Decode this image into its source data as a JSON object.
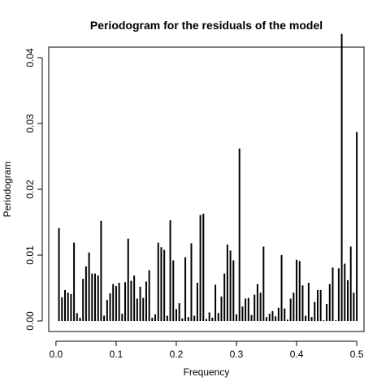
{
  "chart_data": {
    "type": "bar",
    "title": "Periodogram for the residuals of the model",
    "xlabel": "Frequency",
    "ylabel": "Periodogram",
    "xlim": [
      -0.012,
      0.512
    ],
    "ylim": [
      -0.0016,
      0.0416
    ],
    "xticks": [
      0.0,
      0.1,
      0.2,
      0.3,
      0.4,
      0.5
    ],
    "xtick_labels": [
      "0.0",
      "0.1",
      "0.2",
      "0.3",
      "0.4",
      "0.5"
    ],
    "yticks": [
      0.0,
      0.01,
      0.02,
      0.03,
      0.04
    ],
    "ytick_labels": [
      "0.00",
      "0.01",
      "0.02",
      "0.03",
      "0.04"
    ],
    "grid": false,
    "bar_color": "#000000",
    "x": [
      0.005,
      0.01,
      0.015,
      0.02,
      0.025,
      0.03,
      0.035,
      0.04,
      0.045,
      0.05,
      0.055,
      0.06,
      0.065,
      0.07,
      0.075,
      0.08,
      0.085,
      0.09,
      0.095,
      0.1,
      0.105,
      0.11,
      0.115,
      0.12,
      0.125,
      0.13,
      0.135,
      0.14,
      0.145,
      0.15,
      0.155,
      0.16,
      0.165,
      0.17,
      0.175,
      0.18,
      0.185,
      0.19,
      0.195,
      0.2,
      0.205,
      0.21,
      0.215,
      0.22,
      0.225,
      0.23,
      0.235,
      0.24,
      0.245,
      0.25,
      0.255,
      0.26,
      0.265,
      0.27,
      0.275,
      0.28,
      0.285,
      0.29,
      0.295,
      0.3,
      0.305,
      0.31,
      0.315,
      0.32,
      0.325,
      0.33,
      0.335,
      0.34,
      0.345,
      0.35,
      0.355,
      0.36,
      0.365,
      0.37,
      0.375,
      0.38,
      0.385,
      0.39,
      0.395,
      0.4,
      0.405,
      0.41,
      0.415,
      0.42,
      0.425,
      0.43,
      0.435,
      0.44,
      0.445,
      0.45,
      0.455,
      0.46,
      0.465,
      0.47,
      0.475,
      0.48,
      0.485,
      0.49,
      0.495,
      0.5
    ],
    "values": [
      0.0141,
      0.0036,
      0.0047,
      0.0043,
      0.0041,
      0.0119,
      0.0012,
      0.0005,
      0.0064,
      0.0083,
      0.0104,
      0.0072,
      0.0072,
      0.0069,
      0.0152,
      0.0008,
      0.0032,
      0.0042,
      0.0056,
      0.0053,
      0.0058,
      0.0011,
      0.0059,
      0.0125,
      0.0061,
      0.0069,
      0.0034,
      0.0052,
      0.0035,
      0.006,
      0.0077,
      0.0005,
      0.001,
      0.0119,
      0.0112,
      0.0108,
      0.0008,
      0.0153,
      0.0092,
      0.0018,
      0.0027,
      0.0004,
      0.0097,
      0.0006,
      0.0118,
      0.0008,
      0.0058,
      0.0161,
      0.0163,
      0.0003,
      0.0013,
      0.0005,
      0.0055,
      0.0012,
      0.0037,
      0.0072,
      0.0116,
      0.0107,
      0.0092,
      0.001,
      0.0262,
      0.0022,
      0.0034,
      0.0035,
      0.0009,
      0.004,
      0.0056,
      0.0043,
      0.0113,
      0.0006,
      0.0011,
      0.0015,
      0.0007,
      0.002,
      0.01,
      0.0019,
      0.0002,
      0.0034,
      0.0043,
      0.0093,
      0.0091,
      0.0054,
      0.0008,
      0.0058,
      0.0006,
      0.0029,
      0.0047,
      0.0047,
      0.0001,
      0.0026,
      0.0056,
      0.0081,
      0.0001,
      0.008,
      0.0436,
      0.0087,
      0.0062,
      0.0113,
      0.0043,
      0.0287
    ]
  }
}
